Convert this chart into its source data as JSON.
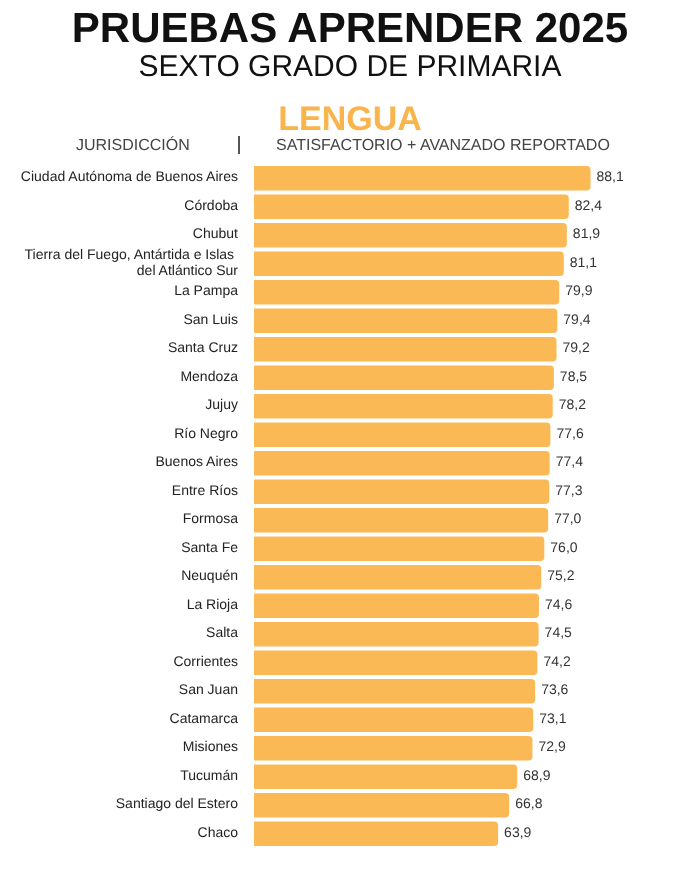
{
  "chart_data": {
    "type": "bar",
    "orientation": "horizontal",
    "title": "PRUEBAS APRENDER 2025",
    "subtitle": "SEXTO GRADO DE PRIMARIA",
    "annotations": [
      "LENGUA"
    ],
    "ylabel": "JURISDICCIÓN",
    "xlabel": "SATISFACTORIO + AVANZADO REPORTADO",
    "categories": [
      "Ciudad Autónoma de Buenos Aires",
      "Córdoba",
      "Chubut",
      "Tierra del Fuego, Antártida e Islas del Atlántico Sur",
      "La Pampa",
      "San Luis",
      "Santa Cruz",
      "Mendoza",
      "Jujuy",
      "Río Negro",
      "Buenos Aires",
      "Entre Ríos",
      "Formosa",
      "Santa Fe",
      "Neuquén",
      "La Rioja",
      "Salta",
      "Corrientes",
      "San Juan",
      "Catamarca",
      "Misiones",
      "Tucumán",
      "Santiago del Estero",
      "Chaco"
    ],
    "values": [
      88.1,
      82.4,
      81.9,
      81.1,
      79.9,
      79.4,
      79.2,
      78.5,
      78.2,
      77.6,
      77.4,
      77.3,
      77.0,
      76.0,
      75.2,
      74.6,
      74.5,
      74.2,
      73.6,
      73.1,
      72.9,
      68.9,
      66.8,
      63.9
    ],
    "value_labels": [
      "88,1",
      "82,4",
      "81,9",
      "81,1",
      "79,9",
      "79,4",
      "79,2",
      "78,5",
      "78,2",
      "77,6",
      "77,4",
      "77,3",
      "77,0",
      "76,0",
      "75,2",
      "74,6",
      "74,5",
      "74,2",
      "73,6",
      "73,1",
      "72,9",
      "68,9",
      "66,8",
      "63,9"
    ],
    "color": "#fbb955"
  }
}
